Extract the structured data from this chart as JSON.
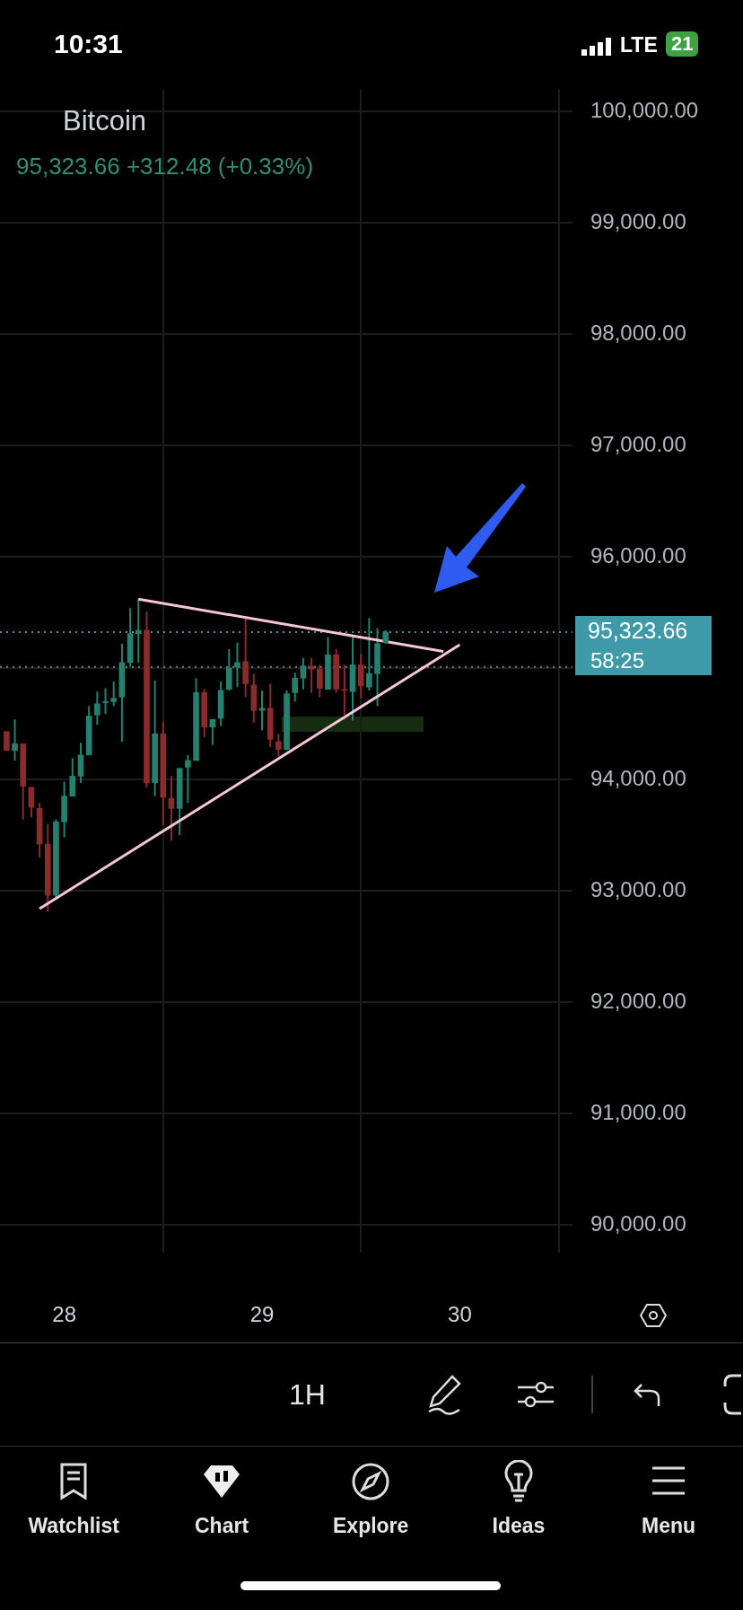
{
  "chart_data": {
    "type": "candlestick",
    "title": "Bitcoin",
    "subtitle": "95,323.66 +312.48 (+0.33%)",
    "x": [
      27.7083,
      27.75,
      27.7917,
      27.8333,
      27.875,
      27.9167,
      27.9583,
      28,
      28.0417,
      28.0833,
      28.125,
      28.1667,
      28.2083,
      28.25,
      28.2917,
      28.3333,
      28.375,
      28.4167,
      28.4583,
      28.5,
      28.5417,
      28.5833,
      28.625,
      28.6667,
      28.7083,
      28.75,
      28.7917,
      28.8333,
      28.875,
      28.9167,
      28.9583,
      29,
      29.0417,
      29.0833,
      29.125,
      29.1667,
      29.2083,
      29.25,
      29.2917,
      29.3333,
      29.375,
      29.4167,
      29.4583,
      29.5,
      29.5417,
      29.5833,
      29.625
    ],
    "ohlc": [
      [
        94430,
        94430,
        94260,
        94260
      ],
      [
        94260,
        94540,
        94170,
        94320
      ],
      [
        94320,
        94320,
        93640,
        93940
      ],
      [
        93930,
        93930,
        93660,
        93750
      ],
      [
        93740,
        93790,
        93300,
        93420
      ],
      [
        93420,
        93600,
        92810,
        92960
      ],
      [
        92960,
        93640,
        92930,
        93620
      ],
      [
        93620,
        93980,
        93480,
        93850
      ],
      [
        93850,
        94190,
        93850,
        94030
      ],
      [
        94030,
        94330,
        93970,
        94220
      ],
      [
        94220,
        94660,
        94220,
        94570
      ],
      [
        94580,
        94790,
        94490,
        94680
      ],
      [
        94690,
        94820,
        94590,
        94700
      ],
      [
        94700,
        94880,
        94660,
        94730
      ],
      [
        94740,
        95220,
        94340,
        95050
      ],
      [
        95050,
        95540,
        95010,
        95310
      ],
      [
        95310,
        95620,
        95050,
        95340
      ],
      [
        95340,
        95510,
        93930,
        93970
      ],
      [
        93970,
        94890,
        93850,
        94410
      ],
      [
        94410,
        94520,
        93590,
        93840
      ],
      [
        93830,
        94030,
        93450,
        93740
      ],
      [
        93740,
        94100,
        93500,
        94100
      ],
      [
        94110,
        94220,
        93790,
        94170
      ],
      [
        94170,
        94910,
        94170,
        94780
      ],
      [
        94780,
        94810,
        94380,
        94470
      ],
      [
        94470,
        94540,
        94310,
        94540
      ],
      [
        94550,
        94880,
        94480,
        94800
      ],
      [
        94810,
        95170,
        94800,
        95000
      ],
      [
        95010,
        95230,
        94830,
        95050
      ],
      [
        95060,
        95450,
        94740,
        94860
      ],
      [
        94850,
        94950,
        94510,
        94620
      ],
      [
        94620,
        94800,
        94440,
        94640
      ],
      [
        94640,
        94860,
        94290,
        94360
      ],
      [
        94340,
        94410,
        94210,
        94270
      ],
      [
        94270,
        94800,
        94260,
        94770
      ],
      [
        94780,
        94960,
        94700,
        94910
      ],
      [
        94910,
        95090,
        94810,
        95020
      ],
      [
        95020,
        95090,
        94780,
        94990
      ],
      [
        94990,
        95030,
        94740,
        94820
      ],
      [
        94810,
        95280,
        94810,
        95120
      ],
      [
        95120,
        95170,
        94780,
        94810
      ],
      [
        94810,
        95030,
        94580,
        94800
      ],
      [
        94790,
        95300,
        94530,
        95030
      ],
      [
        95030,
        95130,
        94730,
        94840
      ],
      [
        94830,
        95450,
        94800,
        94950
      ],
      [
        94950,
        95360,
        94660,
        95220
      ],
      [
        95230,
        95340,
        95220,
        95323.66
      ]
    ],
    "colors": [
      "#8c2b2b",
      "#26806f",
      "#8c2b2b",
      "#8c2b2b",
      "#8c2b2b",
      "#8c2b2b",
      "#26806f",
      "#26806f",
      "#26806f",
      "#26806f",
      "#26806f",
      "#26806f",
      "#26806f",
      "#26806f",
      "#26806f",
      "#26806f",
      "#26806f",
      "#8c2b2b",
      "#26806f",
      "#8c2b2b",
      "#8c2b2b",
      "#26806f",
      "#26806f",
      "#26806f",
      "#8c2b2b",
      "#26806f",
      "#26806f",
      "#26806f",
      "#26806f",
      "#8c2b2b",
      "#8c2b2b",
      "#26806f",
      "#8c2b2b",
      "#8c2b2b",
      "#26806f",
      "#26806f",
      "#26806f",
      "#8c2b2b",
      "#8c2b2b",
      "#26806f",
      "#8c2b2b",
      "#8c2b2b",
      "#26806f",
      "#8c2b2b",
      "#26806f",
      "#26806f",
      "#26806f"
    ],
    "series": [
      {
        "type": "line",
        "x": [
          27.875,
          30
        ],
        "values": [
          92840,
          95210
        ],
        "color": "#f5c6d6"
      },
      {
        "type": "line",
        "x": [
          28.375,
          29.917
        ],
        "values": [
          95620,
          95150
        ],
        "color": "#f5c6d6"
      }
    ],
    "xlim": [
      27.675,
      30.57
    ],
    "xticks": [
      28,
      29,
      30
    ],
    "ylim": [
      89750,
      100200
    ],
    "yticks": [
      {
        "value": 90000,
        "label": "90,000.00"
      },
      {
        "value": 91000,
        "label": "91,000.00"
      },
      {
        "value": 92000,
        "label": "92,000.00"
      },
      {
        "value": 93000,
        "label": "93,000.00"
      },
      {
        "value": 94000,
        "label": "94,000.00"
      },
      {
        "value": 95000,
        "label": null
      },
      {
        "value": 96000,
        "label": "96,000.00"
      },
      {
        "value": 97000,
        "label": "97,000.00"
      },
      {
        "value": 98000,
        "label": "98,000.00"
      },
      {
        "value": 99000,
        "label": "99,000.00"
      },
      {
        "value": 100000,
        "label": "100,000.00"
      }
    ],
    "grid": true,
    "ref_lines": [
      {
        "axis": "y",
        "value": 95323.66,
        "label": "95,323.66",
        "color": "#3d9aa6",
        "line_style": "dotted"
      },
      {
        "axis": "y",
        "value": 95010,
        "color": "#7a7a7a",
        "line_style": "dotted"
      }
    ],
    "annotations": [
      "58:25",
      "1H",
      "Watchlist",
      "Chart",
      "Explore",
      "Ideas",
      "Menu",
      "10:31",
      "LTE",
      "21"
    ]
  }
}
